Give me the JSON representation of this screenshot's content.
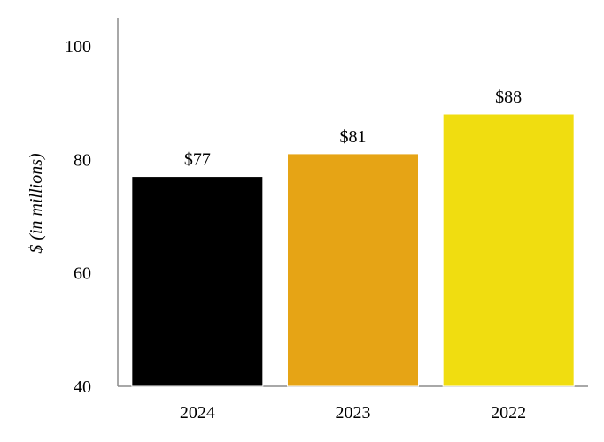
{
  "chart_data": {
    "type": "bar",
    "title": "",
    "xlabel": "",
    "ylabel": "$ (in millions)",
    "categories": [
      "2024",
      "2023",
      "2022"
    ],
    "values": [
      77,
      81,
      88
    ],
    "data_labels": [
      "$77",
      "$81",
      "$88"
    ],
    "colors": [
      "#000000",
      "#E6A415",
      "#F0DD10"
    ],
    "ylim": [
      40,
      100
    ],
    "yticks": [
      40,
      60,
      80,
      100
    ],
    "grid": false,
    "legend": "none"
  }
}
